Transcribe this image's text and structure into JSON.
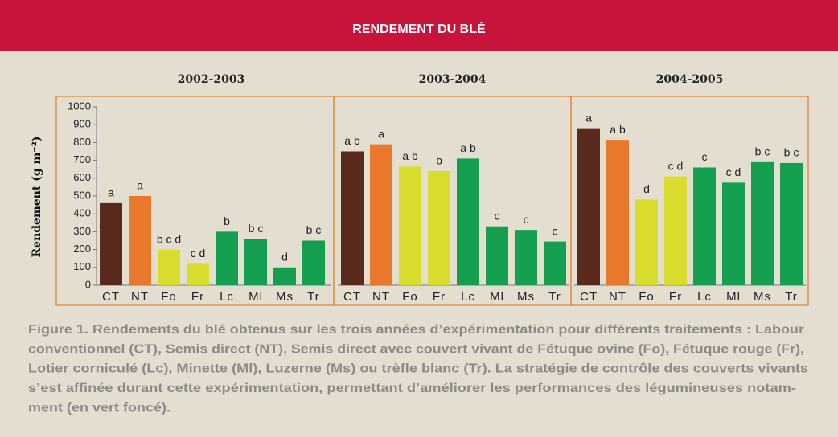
{
  "header": {
    "title": "RENDEMENT DU BLÉ"
  },
  "chart_data": [
    {
      "type": "bar",
      "title": "2002-2003",
      "ylabel": "Rendement (g m⁻²)",
      "categories": [
        "CT",
        "NT",
        "Fo",
        "Fr",
        "Lc",
        "Ml",
        "Ms",
        "Tr"
      ],
      "values": [
        460,
        500,
        200,
        120,
        300,
        260,
        100,
        250
      ],
      "annotations": [
        "a",
        "a",
        "b c d",
        "c d",
        "b",
        "b c",
        "d",
        "b c"
      ],
      "colors": [
        "#5b2a1f",
        "#e8782a",
        "#d8dc2c",
        "#d8dc2c",
        "#139f4f",
        "#139f4f",
        "#139f4f",
        "#139f4f"
      ],
      "ylim": [
        0,
        1000
      ],
      "yticks": [
        0,
        100,
        200,
        300,
        400,
        500,
        600,
        700,
        800,
        900,
        1000
      ]
    },
    {
      "type": "bar",
      "title": "2003-2004",
      "categories": [
        "CT",
        "NT",
        "Fo",
        "Fr",
        "Lc",
        "Ml",
        "Ms",
        "Tr"
      ],
      "values": [
        750,
        790,
        665,
        640,
        710,
        330,
        310,
        245
      ],
      "annotations": [
        "a b",
        "a",
        "a b",
        "b",
        "a b",
        "c",
        "c",
        "c"
      ],
      "colors": [
        "#5b2a1f",
        "#e8782a",
        "#d8dc2c",
        "#d8dc2c",
        "#139f4f",
        "#139f4f",
        "#139f4f",
        "#139f4f"
      ],
      "ylim": [
        0,
        1000
      ]
    },
    {
      "type": "bar",
      "title": "2004-2005",
      "categories": [
        "CT",
        "NT",
        "Fo",
        "Fr",
        "Lc",
        "Ml",
        "Ms",
        "Tr"
      ],
      "values": [
        880,
        815,
        480,
        610,
        660,
        575,
        690,
        685
      ],
      "annotations": [
        "a",
        "a b",
        "d",
        "c d",
        "c",
        "c d",
        "b c",
        "b c"
      ],
      "colors": [
        "#5b2a1f",
        "#e8782a",
        "#d8dc2c",
        "#d8dc2c",
        "#139f4f",
        "#139f4f",
        "#139f4f",
        "#139f4f"
      ],
      "ylim": [
        0,
        1000
      ]
    }
  ],
  "caption": {
    "lines": [
      "Figure 1. Rendements du blé obtenus sur les trois années d’expérimentation pour différents traitements : Labour",
      "conventionnel (CT), Semis direct (NT), Semis direct avec couvert vivant de Fétuque ovine (Fo), Fétuque rouge (Fr),",
      "Lotier corniculé (Lc), Minette (Ml), Luzerne (Ms) ou trèfle blanc (Tr). La stratégie de contrôle des couverts vivants",
      "s’est affinée durant cette expérimentation, permettant d’améliorer les performances des légumineuses notam-",
      "ment (en vert foncé)."
    ]
  }
}
